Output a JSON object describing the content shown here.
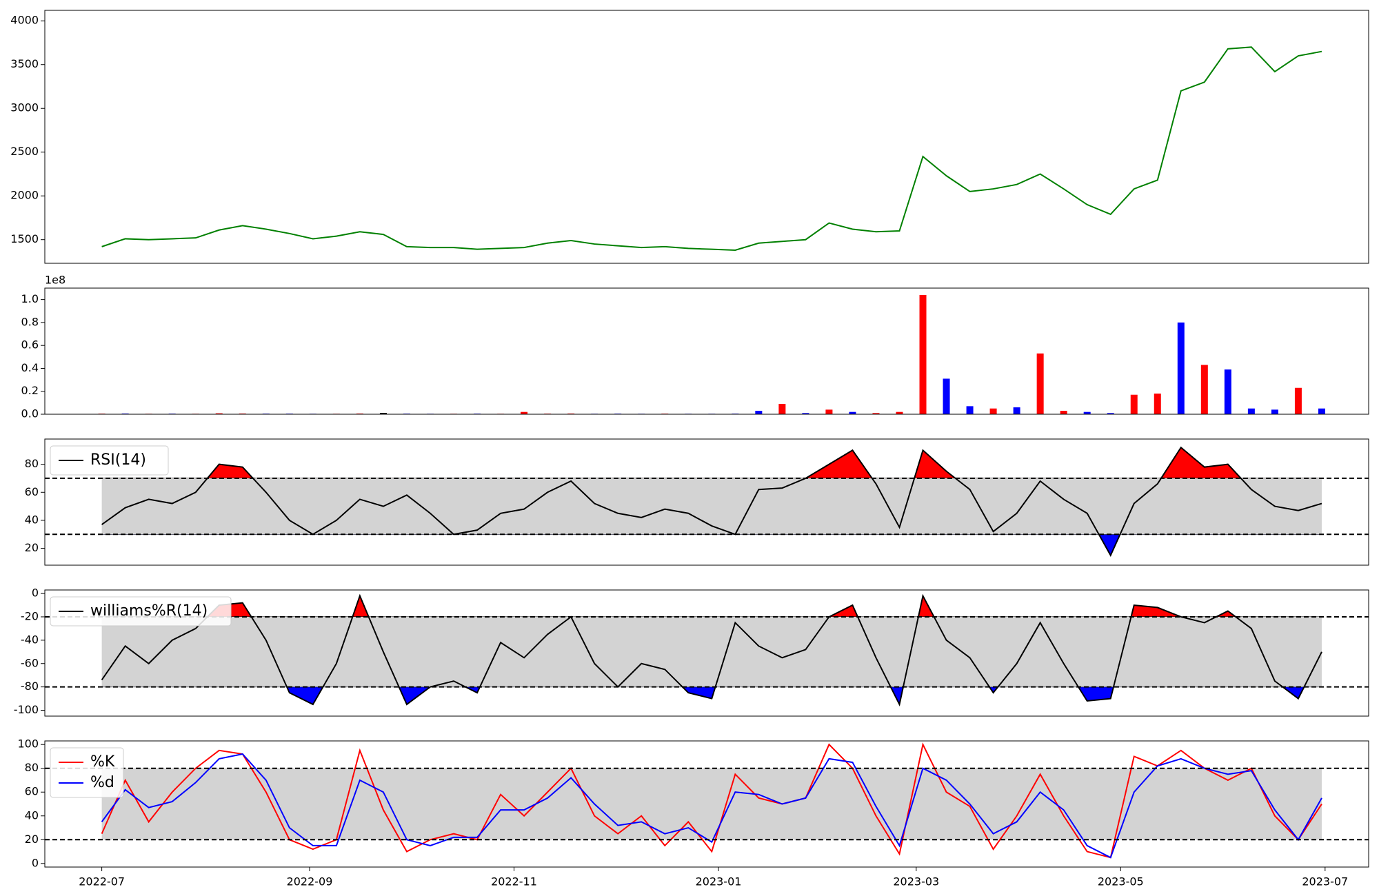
{
  "chart_data": [
    {
      "type": "line",
      "color": "#008000",
      "x": [
        0,
        7,
        14,
        21,
        28,
        35,
        42,
        49,
        56,
        63,
        70,
        77,
        84,
        91,
        98,
        105,
        112,
        119,
        126,
        133,
        140,
        147,
        154,
        161,
        168,
        175,
        182,
        189,
        196,
        203,
        210,
        217,
        224,
        231,
        238,
        245,
        252,
        259,
        266,
        273,
        280,
        287,
        294,
        301,
        308,
        315,
        322,
        329,
        336,
        343,
        350,
        357,
        364
      ],
      "values": [
        1420,
        1510,
        1500,
        1510,
        1520,
        1610,
        1660,
        1620,
        1570,
        1510,
        1540,
        1590,
        1560,
        1420,
        1410,
        1410,
        1390,
        1400,
        1410,
        1460,
        1490,
        1450,
        1430,
        1410,
        1420,
        1400,
        1390,
        1380,
        1460,
        1480,
        1500,
        1690,
        1620,
        1590,
        1600,
        2450,
        2230,
        2050,
        2080,
        2130,
        2250,
        2080,
        1900,
        1790,
        2080,
        2180,
        3200,
        3300,
        3680,
        3700,
        3420,
        3600,
        3650
      ],
      "xlim": [
        -17,
        378
      ],
      "ylim": [
        1230,
        4120
      ],
      "yticks": [
        1500,
        2000,
        2500,
        3000,
        3500,
        4000
      ]
    },
    {
      "type": "bar",
      "offset_label": "1e8",
      "x": [
        0,
        7,
        14,
        21,
        28,
        35,
        42,
        49,
        56,
        63,
        70,
        77,
        84,
        91,
        98,
        105,
        112,
        119,
        126,
        133,
        140,
        147,
        154,
        161,
        168,
        175,
        182,
        189,
        196,
        203,
        210,
        217,
        224,
        231,
        238,
        245,
        252,
        259,
        266,
        273,
        280,
        287,
        294,
        301,
        308,
        315,
        322,
        329,
        336,
        343,
        350,
        357,
        364
      ],
      "values": [
        0.005,
        0.006,
        0.004,
        0.005,
        0.004,
        0.008,
        0.006,
        0.005,
        0.005,
        0.004,
        0.004,
        0.006,
        0.012,
        0.005,
        0.004,
        0.004,
        0.005,
        0.004,
        0.02,
        0.005,
        0.006,
        0.004,
        0.005,
        0.004,
        0.005,
        0.004,
        0.004,
        0.005,
        0.03,
        0.09,
        0.01,
        0.04,
        0.02,
        0.01,
        0.02,
        1.04,
        0.31,
        0.07,
        0.05,
        0.06,
        0.53,
        0.03,
        0.02,
        0.01,
        0.17,
        0.18,
        0.8,
        0.43,
        0.39,
        0.05,
        0.04,
        0.23,
        0.05
      ],
      "colors": [
        "#ff0000",
        "#0000ff",
        "#ff0000",
        "#0000ff",
        "#ff0000",
        "#ff0000",
        "#ff0000",
        "#0000ff",
        "#0000ff",
        "#0000ff",
        "#ff0000",
        "#ff0000",
        "#000000",
        "#0000ff",
        "#0000ff",
        "#ff0000",
        "#0000ff",
        "#ff0000",
        "#ff0000",
        "#ff0000",
        "#ff0000",
        "#0000ff",
        "#0000ff",
        "#0000ff",
        "#ff0000",
        "#0000ff",
        "#0000ff",
        "#0000ff",
        "#0000ff",
        "#ff0000",
        "#0000ff",
        "#ff0000",
        "#0000ff",
        "#ff0000",
        "#ff0000",
        "#ff0000",
        "#0000ff",
        "#0000ff",
        "#ff0000",
        "#0000ff",
        "#ff0000",
        "#ff0000",
        "#0000ff",
        "#0000ff",
        "#ff0000",
        "#ff0000",
        "#0000ff",
        "#ff0000",
        "#0000ff",
        "#0000ff",
        "#0000ff",
        "#ff0000",
        "#0000ff"
      ],
      "xlim": [
        -17,
        378
      ],
      "ylim": [
        0,
        1.1
      ],
      "yticks": [
        {
          "value": 0,
          "label": "0.0"
        },
        0.2,
        0.4,
        0.6,
        0.8,
        {
          "value": 1,
          "label": "1.0"
        }
      ]
    },
    {
      "type": "line",
      "x": [
        0,
        7,
        14,
        21,
        28,
        35,
        42,
        49,
        56,
        63,
        70,
        77,
        84,
        91,
        98,
        105,
        112,
        119,
        126,
        133,
        140,
        147,
        154,
        161,
        168,
        175,
        182,
        189,
        196,
        203,
        210,
        217,
        224,
        231,
        238,
        245,
        252,
        259,
        266,
        273,
        280,
        287,
        294,
        301,
        308,
        315,
        322,
        329,
        336,
        343,
        350,
        357,
        364
      ],
      "series": [
        {
          "name": "RSI(14)",
          "color": "#000000",
          "values": [
            37,
            49,
            55,
            52,
            60,
            80,
            78,
            60,
            40,
            30,
            40,
            55,
            50,
            58,
            45,
            30,
            33,
            45,
            48,
            60,
            68,
            52,
            45,
            42,
            48,
            45,
            36,
            30,
            62,
            63,
            70,
            80,
            90,
            66,
            35,
            90,
            75,
            62,
            32,
            45,
            68,
            55,
            45,
            15,
            52,
            66,
            92,
            78,
            80,
            62,
            50,
            47,
            52
          ]
        }
      ],
      "thresholds": [
        30,
        70
      ],
      "band_color": "#d3d3d3",
      "fill_above": "#ff0000",
      "fill_below": "#0000ff",
      "legend": "upper left",
      "xlim": [
        -17,
        378
      ],
      "ylim": [
        8,
        98
      ],
      "yticks": [
        20,
        40,
        60,
        80
      ]
    },
    {
      "type": "line",
      "x": [
        0,
        7,
        14,
        21,
        28,
        35,
        42,
        49,
        56,
        63,
        70,
        77,
        84,
        91,
        98,
        105,
        112,
        119,
        126,
        133,
        140,
        147,
        154,
        161,
        168,
        175,
        182,
        189,
        196,
        203,
        210,
        217,
        224,
        231,
        238,
        245,
        252,
        259,
        266,
        273,
        280,
        287,
        294,
        301,
        308,
        315,
        322,
        329,
        336,
        343,
        350,
        357,
        364
      ],
      "series": [
        {
          "name": "williams%R(14)",
          "color": "#000000",
          "values": [
            -74,
            -45,
            -60,
            -40,
            -30,
            -10,
            -8,
            -40,
            -85,
            -95,
            -60,
            -2,
            -50,
            -95,
            -80,
            -75,
            -85,
            -42,
            -55,
            -35,
            -20,
            -60,
            -80,
            -60,
            -65,
            -85,
            -90,
            -25,
            -45,
            -55,
            -48,
            -20,
            -10,
            -55,
            -95,
            -2,
            -40,
            -55,
            -85,
            -60,
            -25,
            -60,
            -92,
            -90,
            -10,
            -12,
            -20,
            -25,
            -15,
            -30,
            -75,
            -90,
            -50
          ]
        }
      ],
      "thresholds": [
        -80,
        -20
      ],
      "band_color": "#d3d3d3",
      "fill_above": "#ff0000",
      "fill_below": "#0000ff",
      "legend": "upper left",
      "xlim": [
        -17,
        378
      ],
      "ylim": [
        -105,
        3
      ],
      "yticks": [
        -100,
        -80,
        -60,
        -40,
        -20,
        0
      ]
    },
    {
      "type": "line",
      "x": [
        0,
        7,
        14,
        21,
        28,
        35,
        42,
        49,
        56,
        63,
        70,
        77,
        84,
        91,
        98,
        105,
        112,
        119,
        126,
        133,
        140,
        147,
        154,
        161,
        168,
        175,
        182,
        189,
        196,
        203,
        210,
        217,
        224,
        231,
        238,
        245,
        252,
        259,
        266,
        273,
        280,
        287,
        294,
        301,
        308,
        315,
        322,
        329,
        336,
        343,
        350,
        357,
        364
      ],
      "series": [
        {
          "name": "%K",
          "color": "#ff0000",
          "values": [
            25,
            70,
            35,
            60,
            80,
            95,
            92,
            60,
            20,
            12,
            20,
            95,
            45,
            10,
            20,
            25,
            20,
            58,
            40,
            60,
            80,
            40,
            25,
            40,
            15,
            35,
            10,
            75,
            55,
            50,
            55,
            100,
            80,
            40,
            8,
            100,
            60,
            48,
            12,
            40,
            75,
            40,
            10,
            5,
            90,
            82,
            95,
            80,
            70,
            80,
            40,
            20,
            50
          ]
        },
        {
          "name": "%d",
          "color": "#0000ff",
          "values": [
            35,
            62,
            47,
            52,
            68,
            88,
            92,
            70,
            30,
            15,
            15,
            70,
            60,
            20,
            15,
            22,
            22,
            45,
            45,
            55,
            72,
            50,
            32,
            35,
            25,
            30,
            18,
            60,
            58,
            50,
            55,
            88,
            85,
            48,
            15,
            80,
            70,
            50,
            25,
            35,
            60,
            45,
            15,
            5,
            60,
            82,
            88,
            80,
            75,
            78,
            45,
            20,
            55
          ]
        }
      ],
      "thresholds": [
        20,
        80
      ],
      "band_color": "#d3d3d3",
      "legend": "upper left",
      "xlim": [
        -17,
        378
      ],
      "ylim": [
        -3,
        103
      ],
      "yticks": [
        0,
        20,
        40,
        60,
        80,
        100
      ],
      "xticks": [
        {
          "value": 0,
          "label": "2022-07"
        },
        {
          "value": 62,
          "label": "2022-09"
        },
        {
          "value": 123,
          "label": "2022-11"
        },
        {
          "value": 184,
          "label": "2023-01"
        },
        {
          "value": 243,
          "label": "2023-03"
        },
        {
          "value": 304,
          "label": "2023-05"
        },
        {
          "value": 365,
          "label": "2023-07"
        }
      ]
    }
  ]
}
